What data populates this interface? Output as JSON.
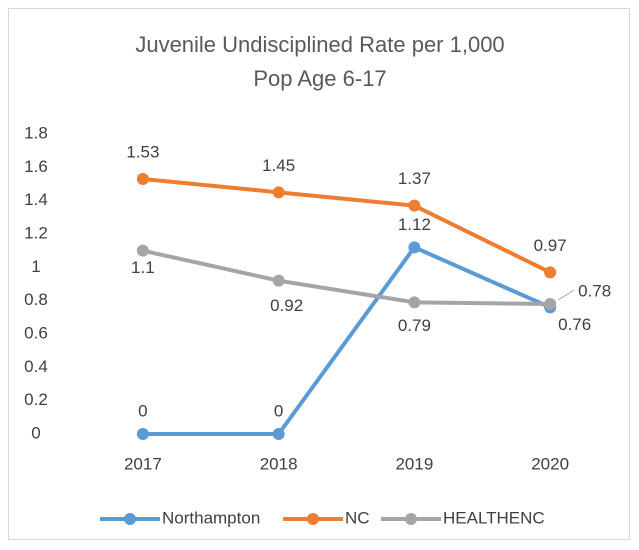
{
  "chart_data": {
    "type": "line",
    "title": [
      "Juvenile Undisciplined Rate per 1,000",
      "Pop Age 6-17"
    ],
    "categories": [
      "2017",
      "2018",
      "2019",
      "2020"
    ],
    "series": [
      {
        "name": "Northampton",
        "color": "#5b9bd5",
        "values": [
          0,
          0,
          1.12,
          0.76
        ]
      },
      {
        "name": "NC",
        "color": "#ed7d31",
        "values": [
          1.53,
          1.45,
          1.37,
          0.97
        ]
      },
      {
        "name": "HEALTHENC",
        "color": "#a5a5a5",
        "values": [
          1.1,
          0.92,
          0.79,
          0.78
        ]
      }
    ],
    "ylim": [
      0,
      1.8
    ],
    "yticks": [
      0,
      0.2,
      0.4,
      0.6,
      0.8,
      1,
      1.2,
      1.4,
      1.6,
      1.8
    ],
    "grid": false,
    "legend": "bottom"
  }
}
